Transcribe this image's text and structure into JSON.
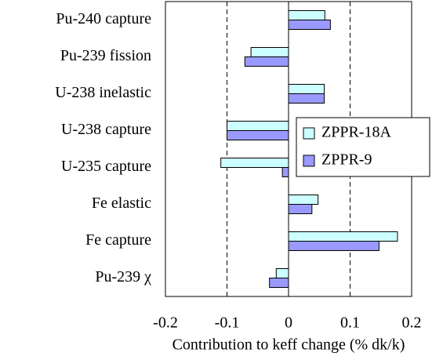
{
  "chart_data": {
    "type": "hbar",
    "xlabel": "Contribution to keff change (% dk/k)",
    "categories": [
      "Pu-240 capture",
      "Pu-239 fission",
      "U-238 inelastic",
      "U-238 capture",
      "U-235 capture",
      "Fe elastic",
      "Fe capture",
      "Pu-239 χ"
    ],
    "series": [
      {
        "name": "ZPPR-18A",
        "color": "#ccffff",
        "values": [
          0.059,
          -0.061,
          0.058,
          -0.1,
          -0.11,
          0.048,
          0.177,
          -0.02
        ]
      },
      {
        "name": "ZPPR-9",
        "color": "#9999ff",
        "values": [
          0.068,
          -0.071,
          0.058,
          -0.1,
          -0.01,
          0.038,
          0.147,
          -0.031
        ]
      }
    ],
    "xlim": [
      -0.2,
      0.2
    ],
    "xticks": [
      -0.2,
      -0.1,
      0,
      0.1,
      0.2
    ],
    "grid": true
  }
}
